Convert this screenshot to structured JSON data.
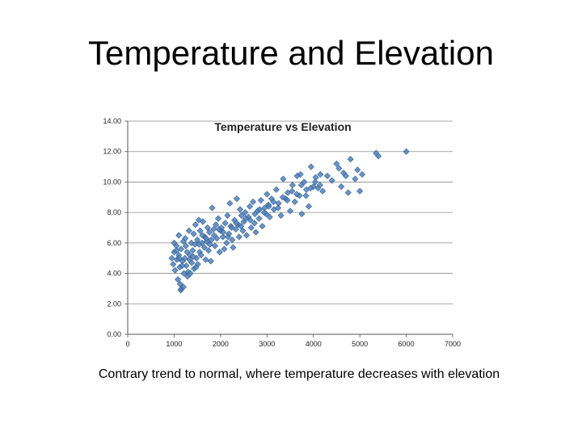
{
  "slide": {
    "title": "Temperature and Elevation",
    "caption": "Contrary trend to normal, where temperature decreases with elevation"
  },
  "chart_data": {
    "type": "scatter",
    "title": "Temperature vs Elevation",
    "xlabel": "",
    "ylabel": "",
    "xlim": [
      0,
      7000
    ],
    "ylim": [
      0,
      14
    ],
    "x_ticks": [
      "0",
      "1000",
      "2000",
      "3000",
      "4000",
      "5000",
      "6000",
      "7000"
    ],
    "y_ticks": [
      "0.00",
      "2.00",
      "4.00",
      "6.00",
      "8.00",
      "10.00",
      "12.00",
      "14.00"
    ],
    "grid": "horizontal",
    "marker_color": "#4f81bd",
    "series": [
      {
        "points": [
          [
            950,
            5.0
          ],
          [
            980,
            4.6
          ],
          [
            1000,
            5.4
          ],
          [
            1000,
            6.0
          ],
          [
            1020,
            4.2
          ],
          [
            1050,
            5.8
          ],
          [
            1060,
            4.9
          ],
          [
            1080,
            3.6
          ],
          [
            1100,
            5.2
          ],
          [
            1100,
            6.5
          ],
          [
            1120,
            4.4
          ],
          [
            1130,
            3.3
          ],
          [
            1140,
            2.9
          ],
          [
            1150,
            5.6
          ],
          [
            1160,
            3.0
          ],
          [
            1180,
            4.8
          ],
          [
            1200,
            3.1
          ],
          [
            1200,
            6.1
          ],
          [
            1210,
            4.0
          ],
          [
            1230,
            5.0
          ],
          [
            1240,
            6.3
          ],
          [
            1260,
            4.5
          ],
          [
            1280,
            5.4
          ],
          [
            1290,
            3.8
          ],
          [
            1300,
            4.1
          ],
          [
            1320,
            6.8
          ],
          [
            1340,
            5.2
          ],
          [
            1350,
            4.0
          ],
          [
            1370,
            6.0
          ],
          [
            1380,
            4.7
          ],
          [
            1400,
            5.5
          ],
          [
            1420,
            6.6
          ],
          [
            1430,
            4.3
          ],
          [
            1450,
            5.9
          ],
          [
            1460,
            7.2
          ],
          [
            1480,
            5.0
          ],
          [
            1500,
            6.2
          ],
          [
            1510,
            4.6
          ],
          [
            1530,
            7.5
          ],
          [
            1550,
            5.4
          ],
          [
            1560,
            6.8
          ],
          [
            1580,
            5.2
          ],
          [
            1600,
            6.0
          ],
          [
            1620,
            7.4
          ],
          [
            1650,
            5.7
          ],
          [
            1660,
            6.4
          ],
          [
            1680,
            4.9
          ],
          [
            1700,
            6.1
          ],
          [
            1720,
            7.0
          ],
          [
            1740,
            5.5
          ],
          [
            1760,
            6.7
          ],
          [
            1790,
            4.8
          ],
          [
            1800,
            6.2
          ],
          [
            1820,
            8.3
          ],
          [
            1850,
            6.9
          ],
          [
            1880,
            5.8
          ],
          [
            1900,
            7.2
          ],
          [
            1920,
            6.3
          ],
          [
            1950,
            7.6
          ],
          [
            1980,
            5.4
          ],
          [
            2000,
            6.8
          ],
          [
            2020,
            7.0
          ],
          [
            2050,
            6.4
          ],
          [
            2080,
            5.6
          ],
          [
            2100,
            7.3
          ],
          [
            2130,
            6.0
          ],
          [
            2150,
            7.8
          ],
          [
            2180,
            6.6
          ],
          [
            2200,
            8.6
          ],
          [
            2220,
            7.1
          ],
          [
            2250,
            6.2
          ],
          [
            2270,
            5.7
          ],
          [
            2300,
            7.5
          ],
          [
            2330,
            6.9
          ],
          [
            2350,
            8.9
          ],
          [
            2380,
            7.2
          ],
          [
            2400,
            6.4
          ],
          [
            2420,
            8.2
          ],
          [
            2450,
            7.8
          ],
          [
            2480,
            6.8
          ],
          [
            2500,
            7.4
          ],
          [
            2530,
            8.0
          ],
          [
            2560,
            6.5
          ],
          [
            2600,
            7.7
          ],
          [
            2630,
            8.4
          ],
          [
            2660,
            7.0
          ],
          [
            2700,
            8.7
          ],
          [
            2730,
            7.3
          ],
          [
            2760,
            6.7
          ],
          [
            2800,
            8.1
          ],
          [
            2830,
            7.6
          ],
          [
            2870,
            8.8
          ],
          [
            2900,
            7.1
          ],
          [
            2950,
            8.3
          ],
          [
            2980,
            7.9
          ],
          [
            3000,
            9.2
          ],
          [
            3030,
            8.5
          ],
          [
            3060,
            7.7
          ],
          [
            3100,
            8.9
          ],
          [
            3150,
            8.2
          ],
          [
            3200,
            9.5
          ],
          [
            3250,
            8.6
          ],
          [
            3300,
            7.8
          ],
          [
            3350,
            10.2
          ],
          [
            3400,
            8.9
          ],
          [
            3450,
            9.3
          ],
          [
            3500,
            8.1
          ],
          [
            3550,
            9.8
          ],
          [
            3600,
            8.7
          ],
          [
            3650,
            10.4
          ],
          [
            3700,
            9.1
          ],
          [
            3750,
            7.9
          ],
          [
            3800,
            10.0
          ],
          [
            3850,
            9.5
          ],
          [
            3900,
            8.4
          ],
          [
            3950,
            11.0
          ],
          [
            4000,
            9.7
          ],
          [
            4050,
            10.3
          ],
          [
            4100,
            9.6
          ],
          [
            4150,
            10.5
          ],
          [
            4200,
            9.4
          ],
          [
            4400,
            10.1
          ],
          [
            4500,
            11.2
          ],
          [
            4600,
            9.7
          ],
          [
            4650,
            10.6
          ],
          [
            4750,
            9.3
          ],
          [
            4800,
            11.5
          ],
          [
            4900,
            10.2
          ],
          [
            5000,
            9.4
          ],
          [
            5050,
            10.5
          ],
          [
            5350,
            11.9
          ],
          [
            5400,
            11.7
          ],
          [
            6000,
            12.0
          ],
          [
            1050,
            5.5
          ],
          [
            1110,
            5.0
          ],
          [
            1170,
            4.5
          ],
          [
            1250,
            5.8
          ],
          [
            1330,
            4.9
          ],
          [
            1410,
            5.1
          ],
          [
            1470,
            4.4
          ],
          [
            1540,
            5.9
          ],
          [
            1610,
            6.5
          ],
          [
            1690,
            6.3
          ],
          [
            1770,
            5.9
          ],
          [
            1860,
            6.5
          ],
          [
            1960,
            6.9
          ],
          [
            2060,
            6.7
          ],
          [
            2160,
            6.4
          ],
          [
            2240,
            7.0
          ],
          [
            2340,
            7.3
          ],
          [
            2440,
            7.1
          ],
          [
            2540,
            7.6
          ],
          [
            2640,
            7.5
          ],
          [
            2740,
            7.9
          ],
          [
            2840,
            8.2
          ],
          [
            2940,
            8.0
          ],
          [
            3040,
            8.4
          ],
          [
            3140,
            8.7
          ],
          [
            3240,
            8.3
          ],
          [
            3340,
            9.0
          ],
          [
            3440,
            8.8
          ],
          [
            3540,
            9.4
          ],
          [
            3640,
            9.2
          ],
          [
            3740,
            9.8
          ],
          [
            3840,
            9.1
          ],
          [
            3940,
            9.6
          ],
          [
            4040,
            10.0
          ],
          [
            4140,
            9.8
          ],
          [
            4300,
            10.4
          ],
          [
            4550,
            10.9
          ],
          [
            4700,
            10.4
          ],
          [
            4950,
            10.8
          ],
          [
            3720,
            10.5
          ]
        ]
      }
    ]
  }
}
